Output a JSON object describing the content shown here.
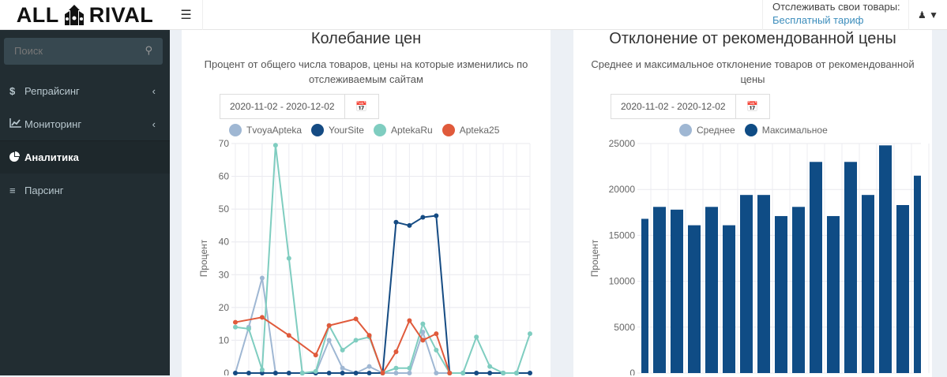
{
  "header": {
    "logo_left": "ALL",
    "logo_right": "RIVAL",
    "track_label": "Отслеживать свои товары:",
    "tariff_link": "Бесплатный тариф"
  },
  "sidebar": {
    "search_placeholder": "Поиск",
    "items": [
      {
        "label": "Репрайсинг",
        "icon": "dollar-icon",
        "active": false
      },
      {
        "label": "Мониторинг",
        "icon": "line-chart-icon",
        "active": false
      },
      {
        "label": "Аналитика",
        "icon": "pie-chart-icon",
        "active": true
      },
      {
        "label": "Парсинг",
        "icon": "list-icon",
        "active": false
      }
    ]
  },
  "panels": [
    {
      "title": "Колебание цен",
      "subtitle": "Процент от общего числа товаров, цены на которые изменились по отслеживаемым сайтам",
      "date_range": "2020-11-02 - 2020-12-02"
    },
    {
      "title": "Отклонение от рекомендованной цены",
      "subtitle": "Среднее и максимальное отклонение товаров от рекомендованной цены",
      "date_range": "2020-11-02 - 2020-12-02"
    }
  ],
  "chart_data": [
    {
      "type": "line",
      "ylabel": "Процент",
      "ylim": [
        0,
        70
      ],
      "yticks": [
        0,
        10,
        20,
        30,
        40,
        50,
        60,
        70
      ],
      "grid": true,
      "legend": "top",
      "series": [
        {
          "name": "TvoyaApteka",
          "color": "#9fb7d3",
          "values": [
            0,
            14,
            29,
            0,
            0,
            0,
            0,
            10,
            1.5,
            0,
            2,
            0,
            0,
            0,
            12.5,
            0,
            0,
            0,
            0,
            0,
            0,
            0,
            0
          ]
        },
        {
          "name": "YourSite",
          "color": "#154b83",
          "values": [
            0,
            0,
            0,
            0,
            0,
            0,
            0,
            0,
            0,
            0,
            0,
            0,
            46,
            45,
            47.5,
            48,
            0,
            0,
            0,
            0,
            0,
            0,
            0
          ]
        },
        {
          "name": "AptekaRu",
          "color": "#7fcdc0",
          "values": [
            14,
            13.5,
            1,
            69.5,
            35,
            0,
            0.5,
            14.5,
            7,
            10,
            11,
            0,
            1.5,
            1.5,
            15,
            7,
            0,
            0,
            11,
            2,
            0,
            0,
            12
          ]
        },
        {
          "name": "Apteka25",
          "color": "#e05a3b",
          "values": [
            15.5,
            null,
            17,
            null,
            11.5,
            null,
            5.5,
            14.5,
            null,
            16.5,
            11.5,
            0,
            6.5,
            16,
            10,
            12,
            0,
            null,
            null,
            null,
            null,
            null,
            null
          ]
        }
      ]
    },
    {
      "type": "bar",
      "ylabel": "Процент",
      "ylim": [
        0,
        25000
      ],
      "yticks": [
        0,
        5000,
        10000,
        15000,
        20000,
        25000
      ],
      "grid": true,
      "legend": "top",
      "series": [
        {
          "name": "Среднее",
          "color": "#9fb7d3",
          "values": []
        },
        {
          "name": "Максимальное",
          "color": "#0f4c85",
          "values": [
            16800,
            18100,
            17800,
            16100,
            18100,
            16100,
            19400,
            19400,
            17100,
            18100,
            23000,
            17100,
            23000,
            19400,
            24800,
            18300,
            21500
          ]
        }
      ]
    }
  ]
}
